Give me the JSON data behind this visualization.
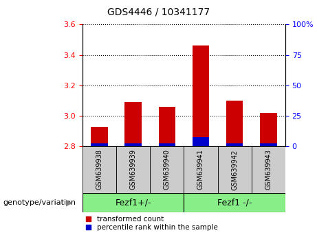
{
  "title": "GDS4446 / 10341177",
  "samples": [
    "GSM639938",
    "GSM639939",
    "GSM639940",
    "GSM639941",
    "GSM639942",
    "GSM639943"
  ],
  "red_values": [
    2.93,
    3.09,
    3.06,
    3.46,
    3.1,
    3.02
  ],
  "blue_values": [
    2.82,
    2.82,
    2.82,
    2.86,
    2.82,
    2.82
  ],
  "ymin": 2.8,
  "ymax": 3.6,
  "yticks_left": [
    2.8,
    3.0,
    3.2,
    3.4,
    3.6
  ],
  "yticks_right": [
    0,
    25,
    50,
    75,
    100
  ],
  "bar_width": 0.5,
  "red_color": "#cc0000",
  "blue_color": "#0000cc",
  "group1_label": "Fezf1+/-",
  "group2_label": "Fezf1 -/-",
  "group_bg_color": "#88ee88",
  "sample_bg_color": "#cccccc",
  "legend_red": "transformed count",
  "legend_blue": "percentile rank within the sample",
  "xlabel": "genotype/variation",
  "title_fontsize": 10,
  "tick_fontsize": 8,
  "label_fontsize": 8,
  "sample_fontsize": 7,
  "group_fontsize": 9
}
